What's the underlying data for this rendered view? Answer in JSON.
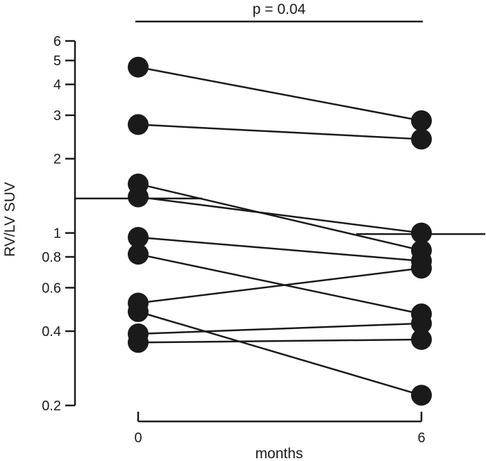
{
  "chart_data": {
    "type": "scatter",
    "subtype": "paired-dot-plot",
    "title": "",
    "xlabel": "months",
    "ylabel": "RV/LV SUV",
    "yscale": "log",
    "ylim": [
      0.2,
      6
    ],
    "yticks": [
      0.2,
      0.4,
      0.6,
      0.8,
      1,
      2,
      3,
      4,
      5,
      6
    ],
    "ytick_labels": [
      "0.2",
      "0.4",
      "0.6",
      "0.8",
      "1",
      "2",
      "3",
      "4",
      "5",
      "6"
    ],
    "x": [
      0,
      6
    ],
    "xtick_labels": [
      "0",
      "6"
    ],
    "grid": false,
    "legend": "none",
    "annotation": "p = 0.04",
    "median_line_values": [
      1.38,
      0.99
    ],
    "pairs": [
      {
        "before": 4.7,
        "after": 2.85
      },
      {
        "before": 2.75,
        "after": 2.4
      },
      {
        "before": 1.58,
        "after": 0.85
      },
      {
        "before": 1.4,
        "after": 1.0
      },
      {
        "before": 0.96,
        "after": 0.77
      },
      {
        "before": 0.82,
        "after": 0.47
      },
      {
        "before": 0.52,
        "after": 0.72
      },
      {
        "before": 0.48,
        "after": 0.22
      },
      {
        "before": 0.39,
        "after": 0.43
      },
      {
        "before": 0.36,
        "after": 0.37
      }
    ],
    "colors": {
      "marker": "#1a1a1a",
      "line": "#1a1a1a"
    }
  }
}
